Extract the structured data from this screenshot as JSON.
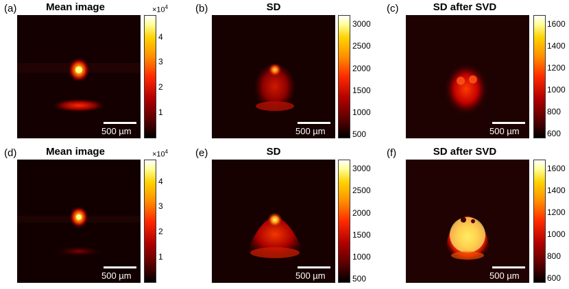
{
  "panels": [
    {
      "label": "(a)",
      "title": "Mean image",
      "scale": "500 µm",
      "exponent": "×10",
      "exp_power": "4",
      "ticks": [
        "4",
        "3",
        "2",
        "1"
      ]
    },
    {
      "label": "(b)",
      "title": "SD",
      "scale": "500 µm",
      "exponent": "",
      "exp_power": "",
      "ticks": [
        "3000",
        "2500",
        "2000",
        "1500",
        "1000",
        "500"
      ]
    },
    {
      "label": "(c)",
      "title": "SD after SVD",
      "scale": "500 µm",
      "exponent": "",
      "exp_power": "",
      "ticks": [
        "1600",
        "1400",
        "1200",
        "1000",
        "800",
        "600"
      ]
    },
    {
      "label": "(d)",
      "title": "Mean image",
      "scale": "500 µm",
      "exponent": "×10",
      "exp_power": "4",
      "ticks": [
        "4",
        "3",
        "2",
        "1"
      ]
    },
    {
      "label": "(e)",
      "title": "SD",
      "scale": "500 µm",
      "exponent": "",
      "exp_power": "",
      "ticks": [
        "3000",
        "2500",
        "2000",
        "1500",
        "1000",
        "500"
      ]
    },
    {
      "label": "(f)",
      "title": "SD after SVD",
      "scale": "500 µm",
      "exponent": "",
      "exp_power": "",
      "ticks": [
        "1600",
        "1400",
        "1200",
        "1000",
        "800",
        "600"
      ]
    }
  ]
}
